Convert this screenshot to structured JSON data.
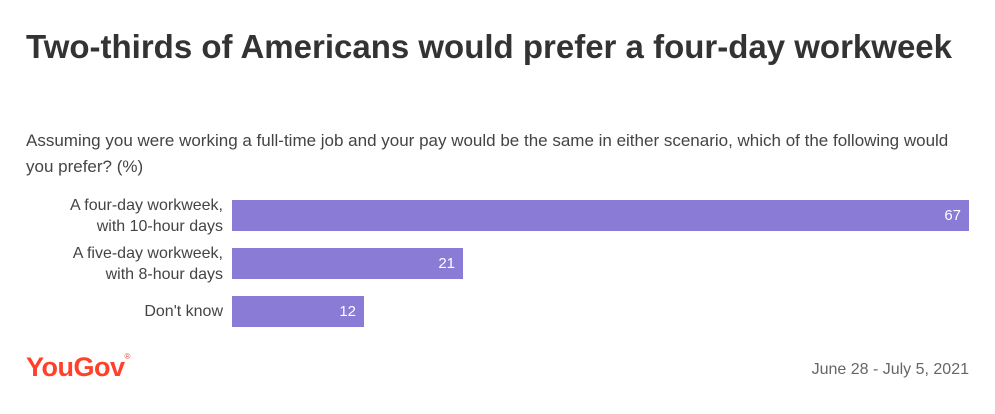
{
  "header": {
    "title": "Two-thirds of Americans would prefer a four-day workweek",
    "subtitle": "Assuming you were working a full-time job and your pay would be the same in either scenario, which of the following would you prefer? (%)"
  },
  "footer": {
    "brand": "YouGov",
    "date_range": "June 28 - July 5, 2021"
  },
  "colors": {
    "bar": "#8a7bd6",
    "brand": "#ff412c"
  },
  "chart_data": {
    "type": "bar",
    "orientation": "horizontal",
    "categories": [
      "A four-day workweek,\nwith 10-hour days",
      "A five-day workweek,\nwith 8-hour days",
      "Don't know"
    ],
    "values": [
      67,
      21,
      12
    ],
    "value_labels": [
      "67",
      "21",
      "12"
    ],
    "xlim": [
      0,
      67
    ],
    "grid": false,
    "legend": "none"
  }
}
